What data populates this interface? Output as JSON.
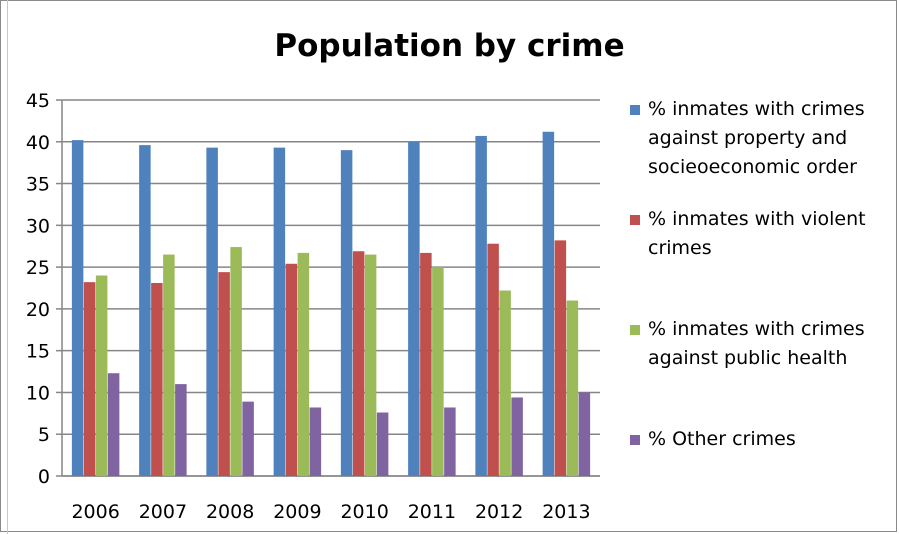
{
  "chart_data": {
    "type": "bar",
    "title": "Population by crime",
    "categories": [
      "2006",
      "2007",
      "2008",
      "2009",
      "2010",
      "2011",
      "2012",
      "2013"
    ],
    "series": [
      {
        "name": "% inmates with crimes against property and socieoeconomic order",
        "color": "#4F81BD",
        "values": [
          40.2,
          39.6,
          39.3,
          39.3,
          39.0,
          40.0,
          40.7,
          41.2
        ]
      },
      {
        "name": "% inmates with violent crimes",
        "color": "#C0504D",
        "values": [
          23.2,
          23.1,
          24.4,
          25.4,
          26.9,
          26.7,
          27.8,
          28.2
        ]
      },
      {
        "name": "% inmates with crimes against public health",
        "color": "#9BBB59",
        "values": [
          24.0,
          26.5,
          27.4,
          26.7,
          26.5,
          25.0,
          22.2,
          21.0
        ]
      },
      {
        "name": "% Other crimes",
        "color": "#8064A2",
        "values": [
          12.3,
          11.0,
          8.9,
          8.2,
          7.6,
          8.2,
          9.4,
          10.0
        ]
      }
    ],
    "yticks": [
      "0",
      "5",
      "10",
      "15",
      "20",
      "25",
      "30",
      "35",
      "40",
      "45"
    ],
    "ylim": [
      0,
      45
    ],
    "grid": true,
    "legend_position": "right"
  }
}
